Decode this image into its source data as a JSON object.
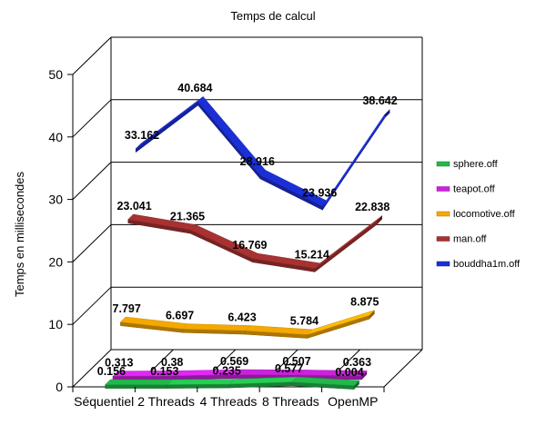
{
  "chart_data": {
    "type": "line",
    "title": "Temps de calcul",
    "xlabel": "",
    "ylabel": "Temps en millisecondes",
    "ylim": [
      0,
      50
    ],
    "yticks": [
      0,
      10,
      20,
      30,
      40,
      50
    ],
    "categories": [
      "Séquentiel",
      "2 Threads",
      "4 Threads",
      "8 Threads",
      "OpenMP"
    ],
    "grid": true,
    "style": "3d",
    "legend": "right",
    "series": [
      {
        "name": "sphere.off",
        "color": "#22b84a",
        "values": [
          0.156,
          0.153,
          0.235,
          0.577,
          0.004
        ],
        "labels": [
          "0.156",
          "0.153",
          "0.235",
          "0.577",
          "0.004"
        ]
      },
      {
        "name": "teapot.off",
        "color": "#cc22dd",
        "values": [
          0.313,
          0.38,
          0.569,
          0.507,
          0.363
        ],
        "labels": [
          "0.313",
          "0.38",
          "0.569",
          "0.507",
          "0.363"
        ]
      },
      {
        "name": "locomotive.off",
        "color": "#f5a800",
        "values": [
          7.797,
          6.697,
          6.423,
          5.784,
          8.875
        ],
        "labels": [
          "7.797",
          "6.697",
          "6.423",
          "5.784",
          "8.875"
        ]
      },
      {
        "name": "man.off",
        "color": "#a83232",
        "values": [
          23.041,
          21.365,
          16.769,
          15.214,
          22.838
        ],
        "labels": [
          "23.041",
          "21.365",
          "16.769",
          "15.214",
          "22.838"
        ]
      },
      {
        "name": "bouddha1m.off",
        "color": "#1c2fd6",
        "values": [
          33.162,
          40.684,
          28.916,
          23.936,
          38.642
        ],
        "labels": [
          "33.162",
          "40.684",
          "28.916",
          "23.936",
          "38.642"
        ]
      }
    ]
  }
}
